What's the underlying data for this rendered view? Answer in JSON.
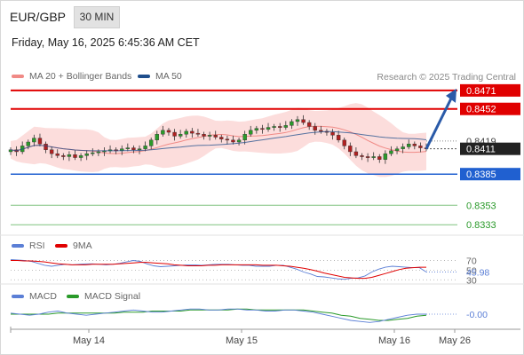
{
  "header": {
    "symbol": "EUR/GBP",
    "timeframe": "30 MIN",
    "datetime": "Friday, May 16, 2025 6:45:36 AM CET"
  },
  "legend": {
    "ma20": {
      "label": "MA 20 + Bollinger Bands",
      "color": "#f08a86"
    },
    "ma50": {
      "label": "MA 50",
      "color": "#1f4e8c"
    },
    "credit": "Research © 2025 Trading Central",
    "rsi": {
      "label": "RSI",
      "color": "#5b7fd6"
    },
    "rsi_ma": {
      "label": "9MA",
      "color": "#e00000"
    },
    "macd": {
      "label": "MACD",
      "color": "#5b7fd6"
    },
    "macd_signal": {
      "label": "MACD Signal",
      "color": "#2a9a2a"
    }
  },
  "chart_data": {
    "type": "candlestick",
    "instrument": "EUR/GBP",
    "timeframe": "30 MIN",
    "x_ticks": [
      "May 14",
      "May 15",
      "May 16",
      "May 26"
    ],
    "ylim": [
      0.8325,
      0.848
    ],
    "levels": [
      {
        "value": 0.8471,
        "label": "0.8471",
        "color": "#e00000",
        "kind": "resistance"
      },
      {
        "value": 0.8452,
        "label": "0.8452",
        "color": "#e00000",
        "kind": "resistance"
      },
      {
        "value": 0.8419,
        "label": "0.8419",
        "color": "#444444",
        "kind": "label"
      },
      {
        "value": 0.8411,
        "label": "0.8411",
        "color": "#222222",
        "kind": "last_price"
      },
      {
        "value": 0.8385,
        "label": "0.8385",
        "color": "#2060d0",
        "kind": "pivot"
      },
      {
        "value": 0.8353,
        "label": "0.8353",
        "color": "#2a9a2a",
        "kind": "support"
      },
      {
        "value": 0.8333,
        "label": "0.8333",
        "color": "#2a9a2a",
        "kind": "support"
      }
    ],
    "close_series": [
      0.841,
      0.8408,
      0.8414,
      0.8418,
      0.8422,
      0.8416,
      0.841,
      0.8406,
      0.8404,
      0.8403,
      0.8405,
      0.8402,
      0.8404,
      0.8406,
      0.8407,
      0.8408,
      0.8409,
      0.841,
      0.8409,
      0.8411,
      0.8412,
      0.841,
      0.8411,
      0.8414,
      0.842,
      0.8426,
      0.843,
      0.8428,
      0.8424,
      0.8426,
      0.8429,
      0.8427,
      0.8426,
      0.8424,
      0.8425,
      0.8423,
      0.8421,
      0.842,
      0.8418,
      0.842,
      0.8426,
      0.843,
      0.8432,
      0.8431,
      0.8433,
      0.8434,
      0.8433,
      0.8435,
      0.8439,
      0.8441,
      0.8438,
      0.8434,
      0.843,
      0.8429,
      0.8428,
      0.8425,
      0.842,
      0.8414,
      0.8408,
      0.8404,
      0.8403,
      0.8402,
      0.8403,
      0.84,
      0.8406,
      0.8409,
      0.8411,
      0.8413,
      0.8416,
      0.8414,
      0.8412,
      0.8411
    ],
    "forecast_arrow": {
      "from": 0.8411,
      "to": 0.8471
    },
    "rsi": {
      "value_label": "45.98",
      "levels": [
        70,
        50,
        30
      ],
      "level_labels": [
        "70",
        "50",
        "30"
      ],
      "ylim": [
        25,
        80
      ],
      "rsi_values": [
        72,
        71,
        70,
        68,
        64,
        60,
        58,
        60,
        62,
        61,
        62,
        63,
        63,
        62,
        61,
        62,
        64,
        67,
        70,
        68,
        63,
        59,
        57,
        58,
        59,
        60,
        61,
        61,
        60,
        61,
        62,
        62,
        62,
        61,
        60,
        60,
        58,
        58,
        58,
        60,
        60,
        56,
        52,
        46,
        42,
        37,
        36,
        34,
        32,
        31,
        33,
        34,
        38,
        46,
        52,
        56,
        58,
        57,
        56,
        55,
        55,
        46
      ],
      "ma9_values": [
        70,
        70,
        69,
        69,
        68,
        67,
        65,
        63,
        62,
        61,
        61,
        61,
        62,
        62,
        62,
        62,
        63,
        64,
        65,
        66,
        66,
        65,
        64,
        63,
        61,
        60,
        59,
        59,
        59,
        60,
        60,
        61,
        61,
        61,
        61,
        61,
        61,
        60,
        60,
        60,
        59,
        58,
        56,
        54,
        51,
        48,
        44,
        41,
        38,
        35,
        34,
        33,
        33,
        35,
        39,
        43,
        47,
        51,
        54,
        55,
        56,
        56
      ]
    },
    "macd": {
      "value_label": "-0.00",
      "ylim": [
        -0.0012,
        0.0012
      ],
      "macd_values": [
        0.0001,
        0.0,
        -0.0001,
        0.0,
        0.0002,
        0.0003,
        0.0001,
        0.0,
        -0.0001,
        0.0,
        0.0001,
        0.0002,
        0.0003,
        0.0004,
        0.0003,
        0.0002,
        0.0002,
        0.0003,
        0.0004,
        0.0005,
        0.0005,
        0.0004,
        0.0004,
        0.0005,
        0.0005,
        0.0004,
        0.0004,
        0.0003,
        0.0003,
        0.0004,
        0.0004,
        0.0003,
        0.0002,
        0.0,
        -0.0002,
        -0.0004,
        -0.0006,
        -0.0007,
        -0.0008,
        -0.0007,
        -0.0005,
        -0.0003,
        -0.0001,
        0.0,
        0.0
      ],
      "signal_values": [
        0.0,
        0.0,
        0.0,
        0.0,
        0.0,
        0.0001,
        0.0001,
        0.0001,
        0.0001,
        0.0001,
        0.0001,
        0.0001,
        0.0002,
        0.0002,
        0.0002,
        0.0003,
        0.0003,
        0.0003,
        0.0003,
        0.0004,
        0.0004,
        0.0004,
        0.0004,
        0.0004,
        0.0005,
        0.0005,
        0.0004,
        0.0004,
        0.0004,
        0.0004,
        0.0004,
        0.0004,
        0.0003,
        0.0002,
        0.0001,
        -0.0001,
        -0.0002,
        -0.0004,
        -0.0005,
        -0.0006,
        -0.0006,
        -0.0005,
        -0.0004,
        -0.0002,
        -0.0001
      ]
    }
  }
}
